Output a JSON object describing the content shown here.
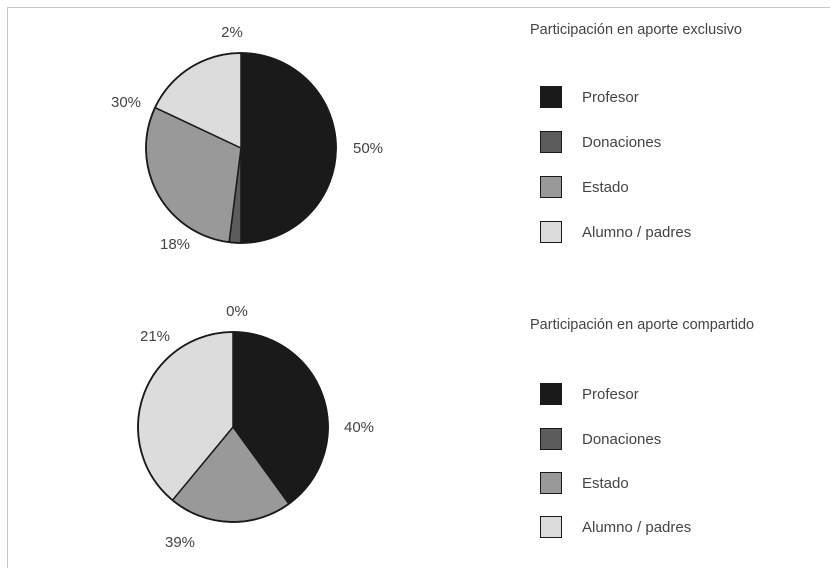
{
  "chart_data": [
    {
      "type": "pie",
      "title": "Participación en aporte exclusivo",
      "categories": [
        "Profesor",
        "Donaciones",
        "Estado",
        "Alumno / padres"
      ],
      "values": [
        50,
        2,
        30,
        18
      ],
      "labels": [
        "50%",
        "2%",
        "30%",
        "18%"
      ],
      "colors": [
        "#1a1a1a",
        "#5c5c5c",
        "#999999",
        "#dcdcdc"
      ],
      "legend_position": "right"
    },
    {
      "type": "pie",
      "title": "Participación en aporte compartido",
      "categories": [
        "Profesor",
        "Donaciones",
        "Estado",
        "Alumno / padres"
      ],
      "values": [
        40,
        0,
        21,
        39
      ],
      "labels": [
        "40%",
        "0%",
        "21%",
        "39%"
      ],
      "colors": [
        "#1a1a1a",
        "#5c5c5c",
        "#999999",
        "#dcdcdc"
      ],
      "legend_position": "right"
    }
  ]
}
